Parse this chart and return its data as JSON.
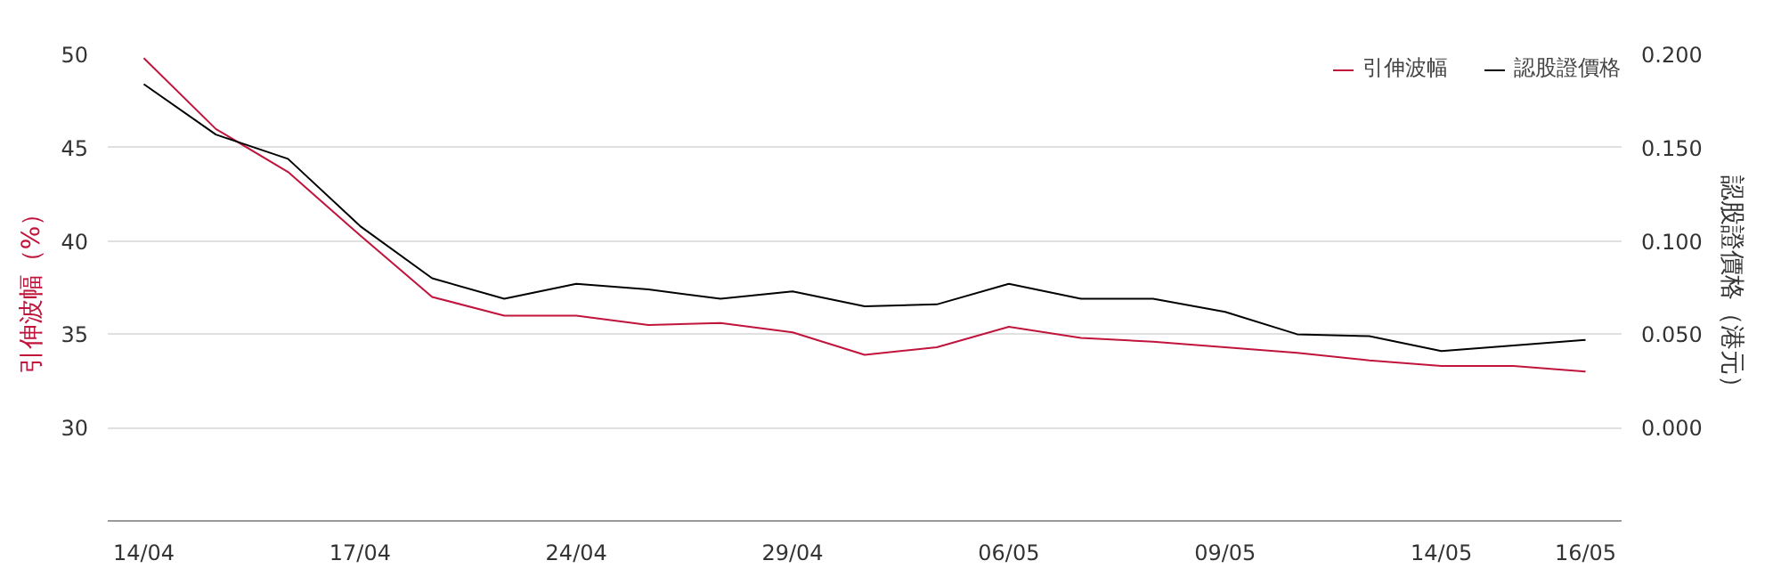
{
  "chart_data": {
    "type": "line",
    "ylabel": "引伸波幅（%）",
    "y2label": "認股證價格（港元）",
    "categories": [
      "14/04",
      null,
      null,
      "17/04",
      null,
      null,
      "24/04",
      null,
      null,
      "29/04",
      null,
      null,
      "06/05",
      null,
      null,
      "09/05",
      null,
      null,
      "14/05",
      null,
      "16/05"
    ],
    "series": [
      {
        "name": "引伸波幅",
        "color": "#c0143c",
        "values": [
          49.8,
          46.0,
          43.7,
          40.3,
          37.0,
          36.0,
          36.0,
          35.5,
          35.6,
          35.1,
          33.9,
          34.3,
          35.4,
          34.8,
          34.6,
          34.3,
          34.0,
          33.6,
          33.3,
          33.3,
          33.0
        ]
      },
      {
        "name": "認股證價格",
        "color": "#000000",
        "axis": "y2",
        "values": [
          0.184,
          0.157,
          0.144,
          0.108,
          0.08,
          0.069,
          0.077,
          0.074,
          0.069,
          0.073,
          0.065,
          0.066,
          0.077,
          0.069,
          0.069,
          0.062,
          0.05,
          0.049,
          0.041,
          0.044,
          0.047
        ]
      }
    ],
    "ylim": [
      25,
      50
    ],
    "yticks": [
      30,
      35,
      40,
      45,
      50
    ],
    "y2lim": [
      -0.05,
      0.2
    ],
    "y2ticks": [
      {
        "value": 0,
        "label": "0.000"
      },
      {
        "value": 0.05,
        "label": "0.050"
      },
      {
        "value": 0.1,
        "label": "0.100"
      },
      {
        "value": 0.15,
        "label": "0.150"
      },
      {
        "value": 0.2,
        "label": "0.200"
      }
    ],
    "grid": "y",
    "legend": "top right",
    "marker": "none",
    "line_style": "solid"
  }
}
